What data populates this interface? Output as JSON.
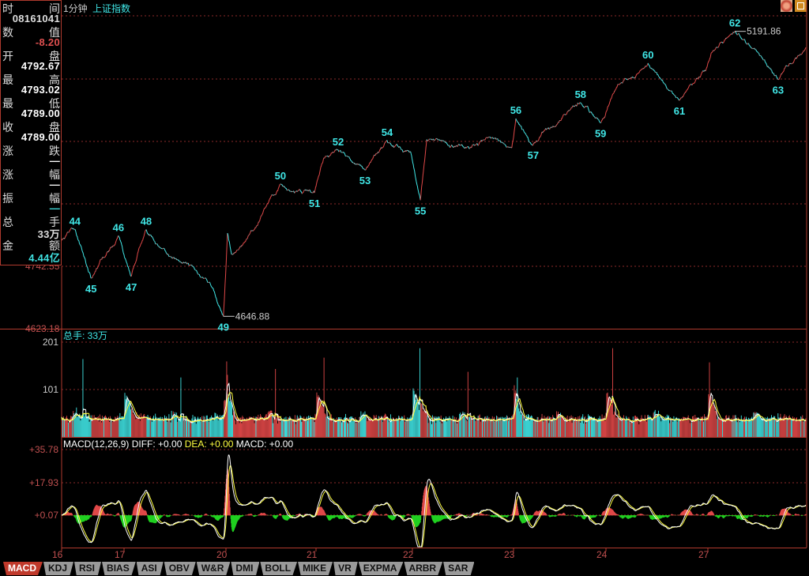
{
  "header": {
    "period": "1分钟",
    "symbol": "上证指数"
  },
  "info_panel": [
    {
      "l": "时",
      "r": "间",
      "value": "08161041",
      "color": "#dddddd"
    },
    {
      "l": "数",
      "r": "值",
      "value": "-8.20",
      "color": "#e05050"
    },
    {
      "l": "开",
      "r": "盘",
      "value": "4792.67",
      "color": "#ffffff"
    },
    {
      "l": "最",
      "r": "高",
      "value": "4793.02",
      "color": "#ffffff"
    },
    {
      "l": "最",
      "r": "低",
      "value": "4789.00",
      "color": "#ffffff"
    },
    {
      "l": "收",
      "r": "盘",
      "value": "4789.00",
      "color": "#ffffff"
    },
    {
      "l": "涨",
      "r": "跌",
      "value": "—",
      "color": "#ffffff"
    },
    {
      "l": "涨",
      "r": "幅",
      "value": "—",
      "color": "#ffffff"
    },
    {
      "l": "振",
      "r": "幅",
      "value": "—",
      "color": "#40e0e0"
    },
    {
      "l": "总",
      "r": "手",
      "value": "33万",
      "color": "#dddddd"
    },
    {
      "l": "金",
      "r": "额",
      "value": "4.44亿",
      "color": "#40e0e0"
    }
  ],
  "colors": {
    "up": "#e04848",
    "down": "#40e6e6",
    "grid": "#8b2a2a",
    "axis": "#b03a2e",
    "diff": "#ffffff",
    "dea": "#ffff40",
    "macd_neg": "#20d020",
    "label": "#40e6e6"
  },
  "chart_data": [
    {
      "type": "line",
      "panel": "price",
      "ylim": [
        4623.18,
        5251.8
      ],
      "yticks_visible": [
        "4742.55",
        "4623.18"
      ],
      "grid": true,
      "x_ticks": [
        "16",
        "17",
        "20",
        "21",
        "22",
        "23",
        "24",
        "27"
      ],
      "waypoints": [
        {
          "t": "16 10:55",
          "p": 4792
        },
        {
          "t": "16 11:28",
          "p": 4813,
          "label": "44",
          "pos": "above"
        },
        {
          "t": "16 13:38",
          "p": 4720,
          "label": "45",
          "pos": "below"
        },
        {
          "t": "16 14:46",
          "p": 4801,
          "label": "46",
          "pos": "above"
        },
        {
          "t": "17 09:47",
          "p": 4723,
          "label": "47",
          "pos": "below"
        },
        {
          "t": "17 10:22",
          "p": 4813,
          "label": "48",
          "pos": "above"
        },
        {
          "t": "17 11:27",
          "p": 4760
        },
        {
          "t": "17 13:53",
          "p": 4730
        },
        {
          "t": "17 14:30",
          "p": 4700
        },
        {
          "t": "17 14:54",
          "p": 4646.88,
          "label": "49",
          "pos": "below",
          "mark": "4646.88"
        },
        {
          "t": "20 09:34",
          "p": 4806
        },
        {
          "t": "20 09:45",
          "p": 4765
        },
        {
          "t": "20 10:42",
          "p": 4810
        },
        {
          "t": "20 13:25",
          "p": 4900,
          "label": "50",
          "pos": "above"
        },
        {
          "t": "20 13:57",
          "p": 4885
        },
        {
          "t": "20 14:56",
          "p": 4883,
          "label": "51",
          "pos": "below"
        },
        {
          "t": "21 09:50",
          "p": 4950
        },
        {
          "t": "21 10:25",
          "p": 4965,
          "label": "52",
          "pos": "above"
        },
        {
          "t": "21 13:02",
          "p": 4927,
          "label": "53",
          "pos": "below"
        },
        {
          "t": "21 13:57",
          "p": 4983,
          "label": "54",
          "pos": "above"
        },
        {
          "t": "21 14:56",
          "p": 4960
        },
        {
          "t": "22 09:49",
          "p": 4869,
          "label": "55",
          "pos": "below"
        },
        {
          "t": "22 10:04",
          "p": 4985
        },
        {
          "t": "22 11:00",
          "p": 4970
        },
        {
          "t": "22 14:04",
          "p": 4990
        },
        {
          "t": "22 14:56",
          "p": 4970
        },
        {
          "t": "23 09:36",
          "p": 5025,
          "label": "56",
          "pos": "above"
        },
        {
          "t": "23 10:21",
          "p": 4975,
          "label": "57",
          "pos": "below"
        },
        {
          "t": "23 11:13",
          "p": 5010
        },
        {
          "t": "23 13:54",
          "p": 5055,
          "label": "58",
          "pos": "above"
        },
        {
          "t": "23 14:46",
          "p": 5017,
          "label": "59",
          "pos": "below"
        },
        {
          "t": "23 14:58",
          "p": 5030
        },
        {
          "t": "24 09:50",
          "p": 5078
        },
        {
          "t": "24 11:09",
          "p": 5131,
          "label": "60",
          "pos": "above"
        },
        {
          "t": "24 13:53",
          "p": 5060,
          "label": "61",
          "pos": "below"
        },
        {
          "t": "24 14:54",
          "p": 5116
        },
        {
          "t": "27 09:38",
          "p": 5150
        },
        {
          "t": "27 10:36",
          "p": 5191.86,
          "label": "62",
          "pos": "above",
          "mark": "5191.86"
        },
        {
          "t": "27 13:04",
          "p": 5150
        },
        {
          "t": "27 13:52",
          "p": 5100,
          "label": "63",
          "pos": "below"
        },
        {
          "t": "27 15:00",
          "p": 5161
        }
      ]
    },
    {
      "type": "bar",
      "panel": "volume",
      "title": "总手: 33万",
      "ylim": [
        0,
        226
      ],
      "yticks": [
        "201",
        "101"
      ],
      "base_volume": 35,
      "spikes": [
        {
          "t": "16 13:18",
          "v": 165
        },
        {
          "t": "17 13:13",
          "v": 126
        },
        {
          "t": "20 09:32",
          "v": 160
        },
        {
          "t": "20 13:11",
          "v": 144
        },
        {
          "t": "21 09:50",
          "v": 168
        },
        {
          "t": "22 09:47",
          "v": 188
        },
        {
          "t": "22 13:11",
          "v": 138
        },
        {
          "t": "23 09:40",
          "v": 126
        },
        {
          "t": "24 09:45",
          "v": 188
        },
        {
          "t": "27 09:34",
          "v": 158
        }
      ]
    },
    {
      "type": "bar",
      "panel": "macd",
      "title": {
        "name": "MACD(12,26,9)",
        "diff": "DIFF: +0.00",
        "dea": "DEA: +0.00",
        "macd": "MACD: +0.00"
      },
      "params": [
        12,
        26,
        9
      ],
      "ylim": [
        -17.1,
        35.78
      ],
      "yticks": [
        "+35.78",
        "+17.93",
        "+0.07"
      ]
    }
  ],
  "tabs": [
    "MACD",
    "KDJ",
    "RSI",
    "BIAS",
    "ASI",
    "OBV",
    "W&R",
    "DMI",
    "BOLL",
    "MIKE",
    "VR",
    "EXPMA",
    "ARBR",
    "SAR"
  ],
  "active_tab": "MACD"
}
